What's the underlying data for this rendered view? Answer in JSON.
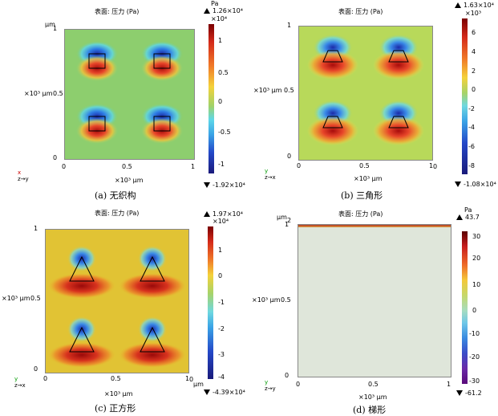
{
  "panels": [
    {
      "title": "表面: 压力 (Pa)",
      "unit_top": "Pa",
      "cbar_max": "1.26×10⁴",
      "cbar_exp": "×10⁴",
      "cbar_min": "-1.92×10⁴",
      "cbar_ticks": [
        "1",
        "0.5",
        "0",
        "-0.5",
        "-1"
      ],
      "y_unit": "μm",
      "y_axis_label": "×10³ μm",
      "y_ticks": [
        "1",
        "0.5",
        "0"
      ],
      "x_ticks": [
        "0",
        "0.5",
        "1"
      ],
      "x_axis_label": "×10³ μm",
      "caption": "(a) 无织构",
      "triad_top": "x",
      "triad_bottom": "z→y"
    },
    {
      "title": "表面: 压力 (Pa)",
      "cbar_max": "1.63×10⁴",
      "cbar_exp": "×10³",
      "cbar_min": "-1.08×10⁴",
      "cbar_ticks": [
        "6",
        "4",
        "2",
        "0",
        "-2",
        "-4",
        "-6",
        "-8"
      ],
      "y_axis_label": "×10³ μm",
      "y_ticks": [
        "1",
        "0.5",
        "0"
      ],
      "x_ticks": [
        "0",
        "0.5",
        "1"
      ],
      "x_end_unit": "0",
      "x_axis_label": "×10³ μm",
      "caption": "(b) 三角形",
      "triad_top": "y",
      "triad_bottom": "z→x"
    },
    {
      "title": "表面: 压力 (Pa)",
      "cbar_max": "1.97×10⁴",
      "cbar_exp": "×10⁴",
      "cbar_min": "-4.39×10⁴",
      "cbar_ticks": [
        "1",
        "0",
        "-1",
        "-2",
        "-3",
        "-4"
      ],
      "y_axis_label": "×10³ μm",
      "y_ticks": [
        "1",
        "0.5",
        "0"
      ],
      "x_ticks": [
        "0",
        "0.5",
        "1"
      ],
      "x_end_unit": "0",
      "x_unit": "μm",
      "x_axis_label": "×10³ μm",
      "caption": "(c) 正方形",
      "triad_top": "y",
      "triad_bottom": "z→x"
    },
    {
      "title": "表面: 压力 (Pa)",
      "unit_top": "Pa",
      "cbar_max": "43.7",
      "cbar_min": "-61.2",
      "cbar_ticks": [
        "30",
        "20",
        "10",
        "0",
        "-10",
        "-20",
        "-30"
      ],
      "y_unit": "μm",
      "y_top_extra": "2",
      "y_axis_label": "×10³ μm",
      "y_ticks": [
        "1",
        "0.5",
        "0"
      ],
      "x_ticks": [
        "0",
        "0.5",
        "1"
      ],
      "x_axis_label": "×10³ μm",
      "caption": "(d) 梯形",
      "triad_top": "y",
      "triad_bottom": "z→y"
    }
  ]
}
